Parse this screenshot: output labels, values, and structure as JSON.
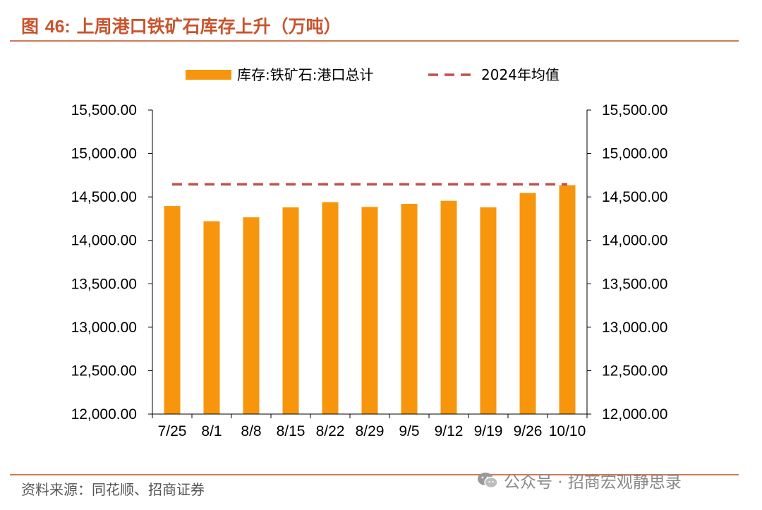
{
  "figure": {
    "label": "图",
    "number": "46:",
    "title": "上周港口铁矿石库存上升（万吨）"
  },
  "source": "资料来源：同花顺、招商证券",
  "watermark": {
    "text": "公众号 · 招商宏观静思录",
    "icon": "wechat-icon"
  },
  "chart_data": {
    "type": "bar",
    "categories": [
      "7/25",
      "8/1",
      "8/8",
      "8/15",
      "8/22",
      "8/29",
      "9/5",
      "9/12",
      "9/19",
      "9/26",
      "10/10"
    ],
    "series": [
      {
        "name": "库存:铁矿石:港口总计",
        "type": "bar",
        "color": "#f7960c",
        "values": [
          14395,
          14220,
          14265,
          14380,
          14440,
          14385,
          14420,
          14455,
          14380,
          14545,
          14635
        ]
      },
      {
        "name": "2024年均值",
        "type": "line",
        "style": "dashed",
        "color": "#c0504d",
        "values": [
          14645,
          14645,
          14645,
          14645,
          14645,
          14645,
          14645,
          14645,
          14645,
          14645,
          14645
        ]
      }
    ],
    "yticks": [
      "12,000.00",
      "12,500.00",
      "13,000.00",
      "13,500.00",
      "14,000.00",
      "14,500.00",
      "15,000.00",
      "15,500.00"
    ],
    "ylim": [
      12000,
      15500
    ],
    "y2lim": [
      12000,
      15500
    ],
    "legend_position": "top",
    "grid": false
  }
}
